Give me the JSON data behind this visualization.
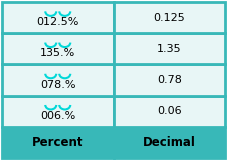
{
  "headers": [
    "Percent",
    "Decimal"
  ],
  "rows": [
    [
      "006.%",
      "0.06"
    ],
    [
      "078.%",
      "0.78"
    ],
    [
      "135.%",
      "1.35"
    ],
    [
      "012.5%",
      "0.125"
    ]
  ],
  "header_bg": "#38b8b8",
  "row_bg": "#e8f6f6",
  "border_color": "#38b8b8",
  "header_text_color": "#000000",
  "cell_text_color": "#000000",
  "arrow_color": "#00d8d8",
  "header_fontsize": 8.5,
  "cell_fontsize": 8.0
}
